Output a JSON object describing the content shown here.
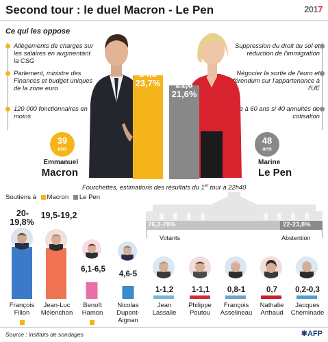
{
  "header": {
    "title": "Second tour : le duel Macron - Le Pen",
    "logo_year_prefix": "201",
    "logo_year_suffix": "7"
  },
  "opposition": {
    "subtitle": "Ce qui les oppose",
    "macron_points": [
      "Allègements de charges sur les salaires en augmentant la CSG",
      "Parlement, ministre des Finances et budget uniques de la zone euro",
      "120 000 fonctionnaires en moins"
    ],
    "lepen_points": [
      "Suppression du droit du sol et réduction de l'immigration",
      "Négocier la sortie de l'euro et référendum sur l'appartenance à l'UE",
      "Retraite à 60 ans si 40 annuités de cotisation"
    ]
  },
  "finalists": {
    "macron": {
      "age": "39",
      "age_unit": "ans",
      "first_name": "Emmanuel",
      "last_name": "Macron",
      "score_line1": "24,1",
      "score_line2": "23,7%",
      "color": "#f4b41a"
    },
    "lepen": {
      "age": "48",
      "age_unit": "ans",
      "first_name": "Marine",
      "last_name": "Le Pen",
      "score_line1": "21,8",
      "score_line2": "21,6%",
      "color": "#888888"
    }
  },
  "first_round": {
    "caption_main": "Fourchettes, estimations des résultats du 1",
    "caption_sup": "er",
    "caption_end": " tour à 22h40",
    "legend_prefix": "Soutiens à",
    "legend_items": [
      {
        "label": "Macron",
        "color": "#f4b41a"
      },
      {
        "label": "Le Pen",
        "color": "#888888"
      }
    ],
    "votants_value": "76,2-78%",
    "votants_label": "Votants",
    "abstention_value": "22-23,8%",
    "abstention_label": "Abstention"
  },
  "chart_data": {
    "type": "bar",
    "categories": [
      "François Fillon",
      "Jean-Luc Mélenchon",
      "Benoît Hamon",
      "Nicolas Dupont-Aignan",
      "Jean Lassalle",
      "Philippe Poutou",
      "François Asselineau",
      "Nathalie Arthaud",
      "Jacques Cheminade"
    ],
    "series": [
      {
        "values_low": [
          19.8,
          19.2,
          6.1,
          4.6,
          1.0,
          1.0,
          0.8,
          0.7,
          0.2
        ],
        "values_high": [
          20,
          19.5,
          6.5,
          5,
          1.2,
          1.1,
          1,
          0.7,
          0.3
        ],
        "range_labels": [
          "20-19,8%",
          "19,5-19,2",
          "6,1-6,5",
          "4,6-5",
          "1-1,2",
          "1-1,1",
          "0,8-1",
          "0,7",
          "0,2-0,3"
        ]
      }
    ],
    "colors": [
      "#3c79c8",
      "#f07353",
      "#ea6fa7",
      "#3c8ad0",
      "#77b7d8",
      "#cc2f3a",
      "#6ba6cc",
      "#c8212e",
      "#4f9fcf"
    ],
    "supports_macron": [
      "François Fillon",
      "Benoît Hamon"
    ],
    "turnout": {
      "votants": [
        76.2,
        78
      ],
      "abstention": [
        22,
        23.8
      ]
    }
  },
  "footer": {
    "source": "Source : instituts de sondages",
    "afp": "AFP"
  }
}
